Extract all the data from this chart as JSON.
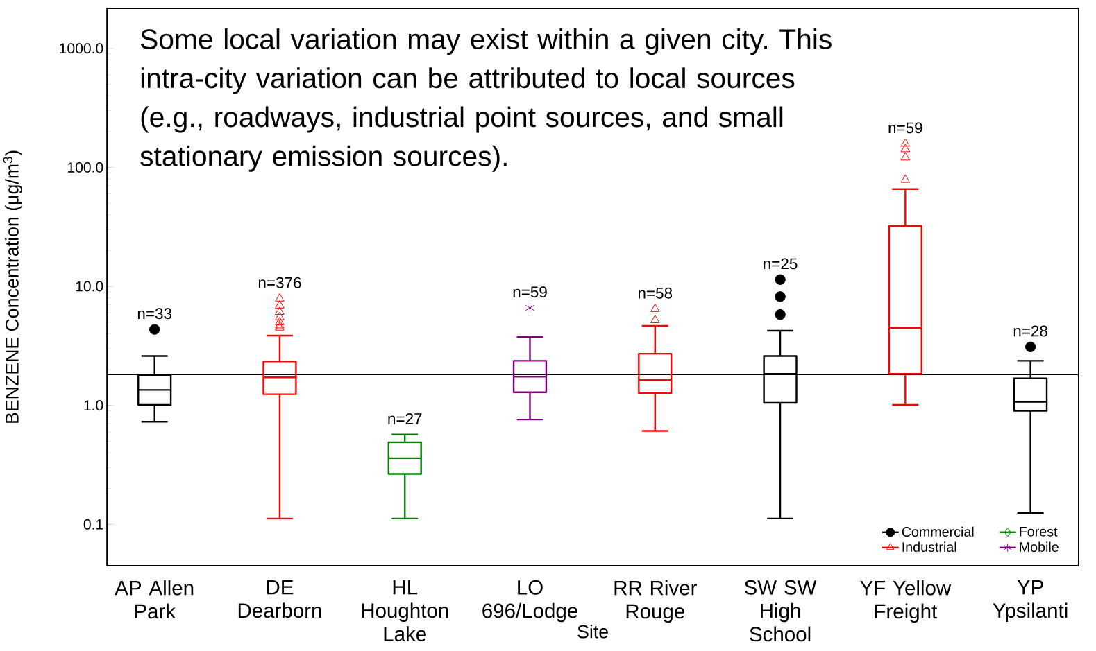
{
  "chart_data": {
    "type": "box",
    "ylabel": "BENZENE  Concentration  (μg/m$^{3}$)",
    "xlabel": "Site",
    "categories": [
      "AP Allen Park",
      "DE Dearborn",
      "HL Houghton Lake",
      "LO 696/Lodge",
      "RR River Rouge",
      "SW SW High School",
      "YF Yellow Freight",
      "YP Ypsilanti"
    ],
    "log": true,
    "grid": false,
    "legend": "bottom right",
    "ylim": [
      0.045,
      2170
    ],
    "yticks": [
      {
        "value": 0.1,
        "label": "0.1"
      },
      {
        "value": 1,
        "label": "1.0"
      },
      {
        "value": 10,
        "label": "10.0"
      },
      {
        "value": 100,
        "label": "100.0"
      },
      {
        "value": 1000,
        "label": "1000.0"
      }
    ],
    "ref_lines": [
      {
        "axis": "y",
        "value": 1.81,
        "color": "#000000"
      }
    ],
    "annotations": [
      "Some local variation may exist within a given city. This intra-city variation can be attributed to local sources (e.g., roadways, industrial point sources, and small stationary emission sources).",
      "n=33",
      "n=376",
      "n=27",
      "n=59",
      "n=58",
      "n=25",
      "n=59",
      "n=28"
    ],
    "series": [
      {
        "name": "Commercial",
        "color": "#000000",
        "marker": "circle",
        "boxes": [
          {
            "low": 0.73,
            "q1": 1.01,
            "median": 1.35,
            "q3": 1.79,
            "high": 2.6,
            "outliers": [
              4.35
            ]
          },
          null,
          null,
          null,
          null,
          {
            "low": 0.112,
            "q1": 1.05,
            "median": 1.84,
            "q3": 2.6,
            "high": 4.24,
            "outliers": [
              5.8,
              8.2,
              11.4
            ]
          },
          null,
          {
            "low": 0.125,
            "q1": 0.9,
            "median": 1.07,
            "q3": 1.69,
            "high": 2.37,
            "outliers": [
              3.1
            ]
          }
        ]
      },
      {
        "name": "Industrial",
        "color": "#ff0000",
        "marker": "triangle",
        "boxes": [
          null,
          {
            "low": 0.112,
            "q1": 1.24,
            "median": 1.72,
            "q3": 2.34,
            "high": 3.86,
            "outliers": [
              4.5,
              4.7,
              5.0,
              5.5,
              6.1,
              6.9,
              7.9
            ]
          },
          null,
          null,
          {
            "low": 0.61,
            "q1": 1.27,
            "median": 1.63,
            "q3": 2.72,
            "high": 4.66,
            "outliers": [
              5.2,
              6.45
            ]
          },
          null,
          {
            "low": 1.01,
            "q1": 1.84,
            "median": 4.48,
            "q3": 32.2,
            "high": 65.7,
            "outliers": [
              78.5,
              121,
              142,
              158
            ]
          },
          null
        ]
      },
      {
        "name": "Forest",
        "color": "#008000",
        "marker": "diamond",
        "boxes": [
          null,
          null,
          {
            "low": 0.112,
            "q1": 0.266,
            "median": 0.36,
            "q3": 0.49,
            "high": 0.57
          },
          null,
          null,
          null,
          null,
          null
        ]
      },
      {
        "name": "Mobile",
        "color": "#800080",
        "marker": "star",
        "boxes": [
          null,
          null,
          null,
          {
            "low": 0.76,
            "q1": 1.29,
            "median": 1.74,
            "q3": 2.37,
            "high": 3.76,
            "outliers": [
              6.6
            ]
          },
          null,
          null,
          null,
          null
        ]
      }
    ]
  }
}
